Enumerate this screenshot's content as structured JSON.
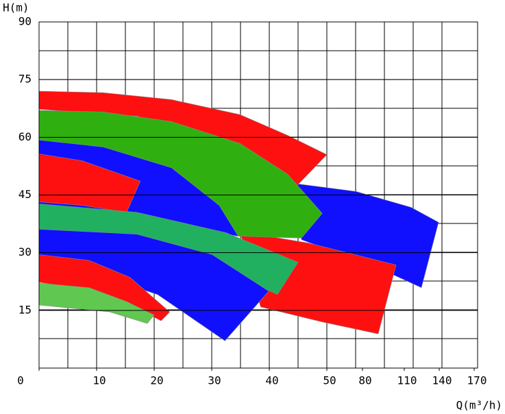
{
  "chart_data": {
    "type": "band-area",
    "y_label": "H(m)",
    "x_label": "Q(m³/h)",
    "ylim": [
      0,
      90
    ],
    "yticks": [
      15,
      30,
      45,
      60,
      75,
      90
    ],
    "xlim": [
      0,
      170
    ],
    "xticks": [
      0,
      10,
      20,
      30,
      40,
      50,
      80,
      110,
      140,
      170
    ],
    "grid": true,
    "series": [
      {
        "color": "#1010ff",
        "x": [
          44.4,
          74.8,
          115.9,
          139.4,
          124.7,
          95.2,
          45.6
        ],
        "values": [
          48.0,
          45.9,
          41.8,
          37.9,
          20.9,
          25.4,
          33.4
        ]
      },
      {
        "color": "#ff1010",
        "x": [
          34.9,
          46.8,
          104.1,
          91.3,
          49.2,
          38.5
        ],
        "values": [
          35.5,
          32.5,
          26.8,
          8.9,
          12.0,
          15.9
        ]
      },
      {
        "color": "#ff1010",
        "x": [
          0,
          11.1,
          23.0,
          34.9,
          43.2,
          50,
          44.4,
          34.9,
          17.0,
          0
        ],
        "values": [
          72.0,
          71.6,
          69.8,
          65.9,
          60.5,
          55.5,
          46.8,
          58.4,
          65.5,
          67.3
        ]
      },
      {
        "color": "#30b010",
        "x": [
          0,
          11.1,
          23.0,
          34.9,
          43.2,
          49.2,
          45.6,
          34.3,
          31.3,
          24.2,
          14.6,
          0
        ],
        "values": [
          67.0,
          66.6,
          64.1,
          58.4,
          50.4,
          40.2,
          33.8,
          34.3,
          42.3,
          50.4,
          55.2,
          59.3
        ]
      },
      {
        "color": "#1010ff",
        "x": [
          0,
          11.1,
          23.0,
          31.3,
          34.6,
          0
        ],
        "values": [
          59.3,
          57.5,
          52.1,
          42.3,
          34.3,
          42.3
        ]
      },
      {
        "color": "#ff1010",
        "x": [
          0,
          7.5,
          17.6,
          15.2,
          7.5,
          0
        ],
        "values": [
          55.7,
          53.9,
          48.6,
          40.5,
          42.3,
          43.2
        ]
      },
      {
        "color": "#20b060",
        "x": [
          0,
          17.0,
          32.5,
          45.0,
          41.4,
          32.5,
          17.0,
          0
        ],
        "values": [
          42.7,
          40.5,
          35.2,
          27.5,
          19.1,
          25.4,
          31.6,
          36.1
        ]
      },
      {
        "color": "#1010ff",
        "x": [
          0,
          17.0,
          30.1,
          39.9,
          32.3,
          20.6,
          0
        ],
        "values": [
          36.1,
          34.8,
          29.5,
          20.0,
          7.1,
          19.1,
          29.5
        ]
      },
      {
        "color": "#ff1010",
        "x": [
          0,
          8.7,
          15.8,
          22.7,
          21.2,
          14.6,
          6.3,
          0
        ],
        "values": [
          29.5,
          28.0,
          23.6,
          14.6,
          12.3,
          17.3,
          20.9,
          22.3
        ]
      },
      {
        "color": "#60c850",
        "x": [
          0,
          8.7,
          15.2,
          20.0,
          18.8,
          12.3,
          0
        ],
        "values": [
          22.1,
          20.9,
          17.3,
          13.8,
          11.6,
          14.6,
          16.4
        ]
      }
    ]
  }
}
